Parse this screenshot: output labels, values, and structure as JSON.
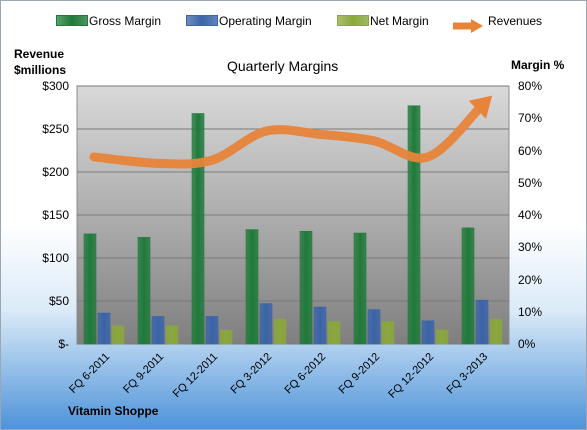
{
  "chart_data": {
    "type": "bar",
    "title": "Quarterly Margins",
    "subtitle": "Vitamin Shoppe",
    "ylabel_left": [
      "Revenue",
      "$millions"
    ],
    "ylabel_right": "Margin %",
    "categories": [
      "FQ 6-2011",
      "FQ 9-2011",
      "FQ 12-2011",
      "FQ 3-2012",
      "FQ 6-2012",
      "FQ 9-2012",
      "FQ 12-2012",
      "FQ 3-2013"
    ],
    "ylim_left": [
      0,
      300
    ],
    "ylim_right": [
      0,
      80
    ],
    "yticks_left": [
      "$-",
      "$50",
      "$100",
      "$150",
      "$200",
      "$250",
      "$300"
    ],
    "yticks_right": [
      "0%",
      "10%",
      "20%",
      "30%",
      "40%",
      "50%",
      "60%",
      "70%",
      "80%"
    ],
    "series": [
      {
        "name": "Gross Margin",
        "axis": "left",
        "color": "#1f7a3a",
        "values": [
          128,
          124,
          268,
          133,
          131,
          129,
          277,
          135
        ]
      },
      {
        "name": "Operating Margin",
        "axis": "left",
        "color": "#3a64a8",
        "values": [
          36,
          32,
          32,
          47,
          43,
          40,
          27,
          51
        ]
      },
      {
        "name": "Net Margin",
        "axis": "left",
        "color": "#8aa83a",
        "values": [
          21,
          21,
          16,
          29,
          26,
          26,
          16,
          29
        ]
      },
      {
        "name": "Revenues",
        "axis": "right",
        "type": "line",
        "color": "#e8843a",
        "values": [
          58,
          56,
          57,
          66,
          65,
          63,
          58,
          74
        ]
      }
    ],
    "grid": true,
    "legend": "top"
  }
}
